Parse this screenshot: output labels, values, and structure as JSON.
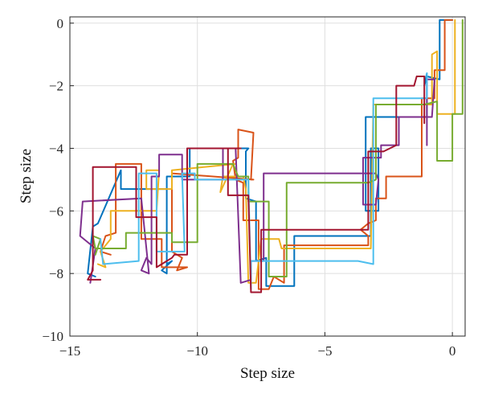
{
  "chart_data": {
    "type": "line",
    "title": "",
    "xlabel": "Step size",
    "ylabel": "Step size",
    "xlim": [
      -15,
      0.5
    ],
    "ylim": [
      -10,
      0.2
    ],
    "xticks": [
      -15,
      -10,
      -5,
      0
    ],
    "yticks": [
      0,
      -2,
      -4,
      -6,
      -8,
      -10
    ],
    "grid": true,
    "legend": "none",
    "colors": [
      "#0072bd",
      "#d95319",
      "#edb120",
      "#7e2f8e",
      "#77ac30",
      "#4dbeee",
      "#a2142f"
    ],
    "series": [
      {
        "color": "#0072bd",
        "x": [
          0,
          -0.5,
          -0.5,
          -1.0,
          -1.1,
          -1.0,
          -1.0,
          -3.4,
          -3.4,
          -2.9,
          -2.9,
          -3.2,
          -3.2,
          -6.2,
          -6.2,
          -7.3,
          -7.3,
          -7.7,
          -7.7,
          -8.1,
          -8.1,
          -8.0,
          -8.0,
          -10.3,
          -10.3,
          -11.2,
          -11.2,
          -11.0,
          -11.4,
          -11.2,
          -11.2,
          -13.0,
          -13.0,
          -13.9,
          -14.1,
          -14.3,
          -14.0
        ],
        "y": [
          0.1,
          0.1,
          -1.8,
          -1.7,
          -2.0,
          -1.6,
          -3.0,
          -3.0,
          -6.0,
          -6.0,
          -4.0,
          -4.0,
          -6.8,
          -6.8,
          -8.4,
          -8.4,
          -7.5,
          -7.6,
          -5.7,
          -5.6,
          -4.1,
          -4.0,
          -4.0,
          -4.0,
          -4.9,
          -4.9,
          -7.7,
          -7.6,
          -7.9,
          -8.0,
          -5.3,
          -5.3,
          -4.7,
          -6.4,
          -6.5,
          -8.0,
          -8.1
        ]
      },
      {
        "color": "#d95319",
        "x": [
          0,
          -0.3,
          -0.3,
          -0.7,
          -0.7,
          -1.2,
          -1.2,
          -2.6,
          -2.6,
          -3.0,
          -3.0,
          -3.3,
          -3.6,
          -3.3,
          -3.3,
          -6.6,
          -6.6,
          -7.0,
          -7.2,
          -7.6,
          -7.6,
          -8.2,
          -8.2,
          -8.5,
          -8.6,
          -8.4,
          -8.4,
          -7.8,
          -7.9,
          -7.8,
          -11.0,
          -11.0,
          -10.6,
          -10.8,
          -10.4,
          -11.4,
          -11.4,
          -12.2,
          -12.2,
          -13.2,
          -13.2,
          -13.6,
          -13.8,
          -13.4
        ],
        "y": [
          0.1,
          0.1,
          -1.5,
          -1.5,
          -2.4,
          -2.4,
          -4.9,
          -4.9,
          -5.6,
          -5.6,
          -6.3,
          -6.4,
          -6.6,
          -6.8,
          -7.1,
          -7.1,
          -8.3,
          -8.1,
          -8.5,
          -8.5,
          -6.3,
          -6.3,
          -5.1,
          -5.0,
          -4.4,
          -4.3,
          -3.4,
          -3.5,
          -5.0,
          -5.0,
          -4.8,
          -7.3,
          -7.5,
          -7.9,
          -7.8,
          -7.8,
          -6.9,
          -6.9,
          -4.5,
          -4.5,
          -6.7,
          -6.8,
          -7.3,
          -7.4
        ]
      },
      {
        "color": "#edb120",
        "x": [
          0.1,
          0.1,
          -0.6,
          -0.6,
          -0.8,
          -0.8,
          -3.1,
          -3.2,
          -6.7,
          -6.8,
          -7.5,
          -7.7,
          -8.0,
          -8.1,
          -8.2,
          -9.0,
          -9.1,
          -8.6,
          -8.5,
          -11.0,
          -11.0,
          -12.0,
          -12.0,
          -11.5,
          -11.6,
          -13.4,
          -13.4,
          -13.8,
          -13.6,
          -13.9
        ],
        "y": [
          0.1,
          -2.9,
          -2.9,
          -0.9,
          -1.0,
          -2.6,
          -2.6,
          -7.2,
          -7.2,
          -6.9,
          -6.9,
          -8.3,
          -8.3,
          -5.3,
          -4.9,
          -4.9,
          -5.4,
          -4.5,
          -4.5,
          -4.7,
          -5.3,
          -5.3,
          -4.7,
          -4.7,
          -6.0,
          -6.0,
          -6.9,
          -7.3,
          -7.8,
          -7.7
        ]
      },
      {
        "color": "#7e2f8e",
        "x": [
          -1.0,
          -1.0,
          -0.7,
          -0.8,
          -2.1,
          -2.1,
          -2.8,
          -2.8,
          -3.5,
          -3.5,
          -3.0,
          -2.9,
          -3.0,
          -7.4,
          -7.4,
          -7.9,
          -7.9,
          -8.3,
          -8.5,
          -9.0,
          -9.0,
          -10.6,
          -10.6,
          -11.5,
          -11.5,
          -11.8,
          -11.8,
          -12.0,
          -12.2,
          -11.9,
          -12.2,
          -12.2,
          -14.5,
          -14.6,
          -14.0,
          -14.2
        ],
        "y": [
          -3.9,
          -1.8,
          -1.8,
          -3.0,
          -3.0,
          -3.9,
          -3.9,
          -4.3,
          -4.3,
          -5.8,
          -5.8,
          -5.0,
          -4.8,
          -4.8,
          -7.6,
          -7.6,
          -8.2,
          -8.3,
          -4.0,
          -4.0,
          -5.0,
          -5.0,
          -4.2,
          -4.2,
          -4.9,
          -4.9,
          -7.7,
          -7.5,
          -7.9,
          -8.0,
          -5.6,
          -5.6,
          -5.7,
          -6.8,
          -7.2,
          -8.3
        ]
      },
      {
        "color": "#77ac30",
        "x": [
          0.4,
          0.4,
          0,
          0,
          -0.6,
          -0.6,
          -1.1,
          -3.0,
          -3.0,
          -3.3,
          -6.5,
          -6.5,
          -7.2,
          -7.2,
          -8.0,
          -8.0,
          -8.4,
          -8.6,
          -10.0,
          -10.0,
          -11.0,
          -11.0,
          -12.8,
          -12.8,
          -14.0,
          -14.1,
          -13.8,
          -14.0
        ],
        "y": [
          0.1,
          -2.9,
          -2.9,
          -4.4,
          -4.4,
          -2.5,
          -2.6,
          -2.6,
          -5.0,
          -5.1,
          -5.1,
          -8.1,
          -8.1,
          -5.7,
          -5.7,
          -4.9,
          -4.9,
          -4.5,
          -4.5,
          -7.0,
          -7.0,
          -6.7,
          -6.7,
          -7.2,
          -7.2,
          -6.8,
          -6.9,
          -7.4
        ]
      },
      {
        "color": "#4dbeee",
        "x": [
          -1.0,
          -1.0,
          -3.1,
          -3.1,
          -3.7,
          -7.9,
          -7.9,
          -8.0,
          -10.1,
          -10.1,
          -10.6,
          -10.5,
          -11.6,
          -11.6,
          -12.3,
          -12.3,
          -13.7,
          -13.8
        ],
        "y": [
          -1.6,
          -2.4,
          -2.4,
          -7.7,
          -7.6,
          -7.6,
          -8.5,
          -5.0,
          -5.0,
          -4.8,
          -4.8,
          -7.3,
          -7.3,
          -4.8,
          -4.8,
          -7.6,
          -7.7,
          -6.9
        ]
      },
      {
        "color": "#a2142f",
        "x": [
          -1.1,
          -1.1,
          -1.4,
          -1.5,
          -2.2,
          -2.2,
          -2.7,
          -3.3,
          -3.3,
          -7.5,
          -7.5,
          -7.9,
          -8.0,
          -8.8,
          -8.8,
          -8.3,
          -10.4,
          -10.4,
          -10.9,
          -11.0,
          -11.4,
          -11.6,
          -11.6,
          -12.4,
          -12.4,
          -14.1,
          -14.1,
          -14.3,
          -13.8
        ],
        "y": [
          -3.2,
          -1.7,
          -1.7,
          -2.0,
          -2.0,
          -3.9,
          -4.1,
          -4.1,
          -6.6,
          -6.6,
          -8.6,
          -8.6,
          -5.5,
          -5.5,
          -4.0,
          -4.0,
          -4.0,
          -7.4,
          -7.4,
          -7.5,
          -7.7,
          -7.8,
          -6.2,
          -6.2,
          -4.6,
          -4.6,
          -7.9,
          -8.2,
          -8.2
        ]
      }
    ]
  }
}
